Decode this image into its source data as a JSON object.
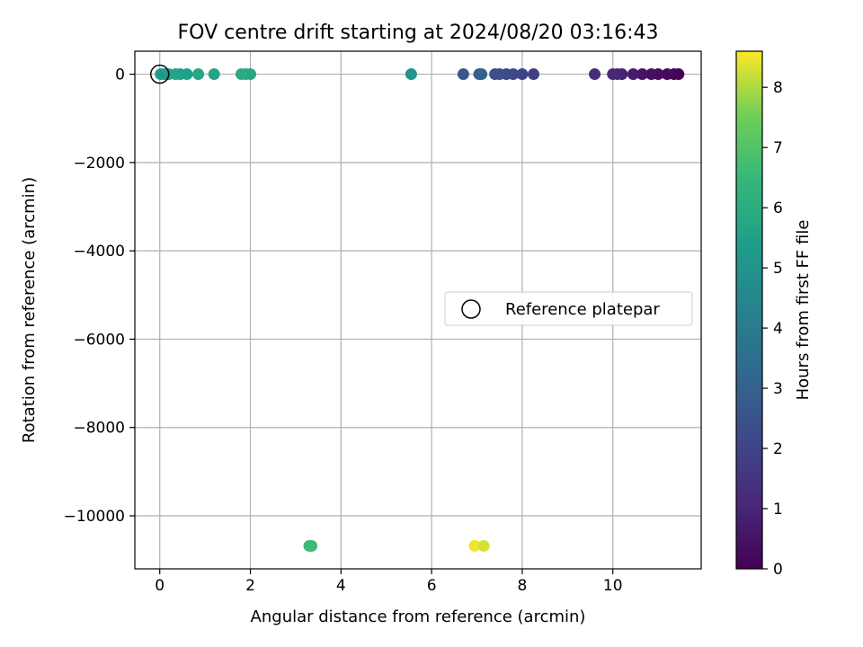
{
  "chart_data": {
    "type": "scatter",
    "title": "FOV centre drift starting at 2024/08/20 03:16:43",
    "xlabel": "Angular distance from reference (arcmin)",
    "ylabel": "Rotation from reference (arcmin)",
    "xlim": [
      -0.55,
      11.95
    ],
    "ylim": [
      -11200,
      520
    ],
    "xticks": [
      0,
      2,
      4,
      6,
      8,
      10
    ],
    "yticks": [
      0,
      -2000,
      -4000,
      -6000,
      -8000,
      -10000
    ],
    "xtick_labels": [
      "0",
      "2",
      "4",
      "6",
      "8",
      "10"
    ],
    "ytick_labels": [
      "0",
      "−2000",
      "−4000",
      "−6000",
      "−8000",
      "−10000"
    ],
    "grid": true,
    "legend": {
      "placement": "center-right",
      "entries": [
        "Reference platepar"
      ]
    },
    "colorbar": {
      "label": "Hours from first FF file",
      "range": [
        0,
        8.6
      ],
      "colormap": "viridis",
      "ticks": [
        0,
        1,
        2,
        3,
        4,
        5,
        6,
        7,
        8
      ],
      "tick_labels": [
        "0",
        "1",
        "2",
        "3",
        "4",
        "5",
        "6",
        "7",
        "8"
      ]
    },
    "reference": {
      "x": 0,
      "y": 0
    },
    "points": [
      {
        "x": 11.45,
        "y": 0,
        "hours": 0.0
      },
      {
        "x": 11.35,
        "y": 0,
        "hours": 0.1
      },
      {
        "x": 11.2,
        "y": 0,
        "hours": 0.2
      },
      {
        "x": 11.0,
        "y": 0,
        "hours": 0.3
      },
      {
        "x": 10.85,
        "y": 0,
        "hours": 0.4
      },
      {
        "x": 10.65,
        "y": 0,
        "hours": 0.5
      },
      {
        "x": 10.45,
        "y": 0,
        "hours": 0.7
      },
      {
        "x": 10.2,
        "y": 0,
        "hours": 0.9
      },
      {
        "x": 10.1,
        "y": 0,
        "hours": 1.0
      },
      {
        "x": 10.0,
        "y": 0,
        "hours": 1.1
      },
      {
        "x": 9.6,
        "y": 0,
        "hours": 1.2
      },
      {
        "x": 8.25,
        "y": 0,
        "hours": 1.9
      },
      {
        "x": 8.0,
        "y": 0,
        "hours": 2.0
      },
      {
        "x": 7.8,
        "y": 0,
        "hours": 2.1
      },
      {
        "x": 7.65,
        "y": 0,
        "hours": 2.2
      },
      {
        "x": 7.5,
        "y": 0,
        "hours": 2.3
      },
      {
        "x": 7.4,
        "y": 0,
        "hours": 2.4
      },
      {
        "x": 7.1,
        "y": 0,
        "hours": 2.9
      },
      {
        "x": 7.05,
        "y": 0,
        "hours": 3.0
      },
      {
        "x": 6.7,
        "y": 0,
        "hours": 2.6
      },
      {
        "x": 5.55,
        "y": 0,
        "hours": 5.0
      },
      {
        "x": 2.0,
        "y": 0,
        "hours": 5.8
      },
      {
        "x": 1.9,
        "y": 0,
        "hours": 5.85
      },
      {
        "x": 1.8,
        "y": 0,
        "hours": 5.9
      },
      {
        "x": 1.2,
        "y": 0,
        "hours": 5.6
      },
      {
        "x": 0.85,
        "y": 0,
        "hours": 5.7
      },
      {
        "x": 0.6,
        "y": 0,
        "hours": 5.4
      },
      {
        "x": 0.45,
        "y": 0,
        "hours": 5.5
      },
      {
        "x": 0.35,
        "y": 0,
        "hours": 5.6
      },
      {
        "x": 0.2,
        "y": 0,
        "hours": 5.6
      },
      {
        "x": 0.1,
        "y": 0,
        "hours": 5.3
      },
      {
        "x": 0.02,
        "y": 0,
        "hours": 5.3
      },
      {
        "x": 3.3,
        "y": -10680,
        "hours": 6.6
      },
      {
        "x": 3.35,
        "y": -10680,
        "hours": 6.6
      },
      {
        "x": 6.95,
        "y": -10680,
        "hours": 8.5
      },
      {
        "x": 7.15,
        "y": -10680,
        "hours": 8.3
      }
    ]
  }
}
